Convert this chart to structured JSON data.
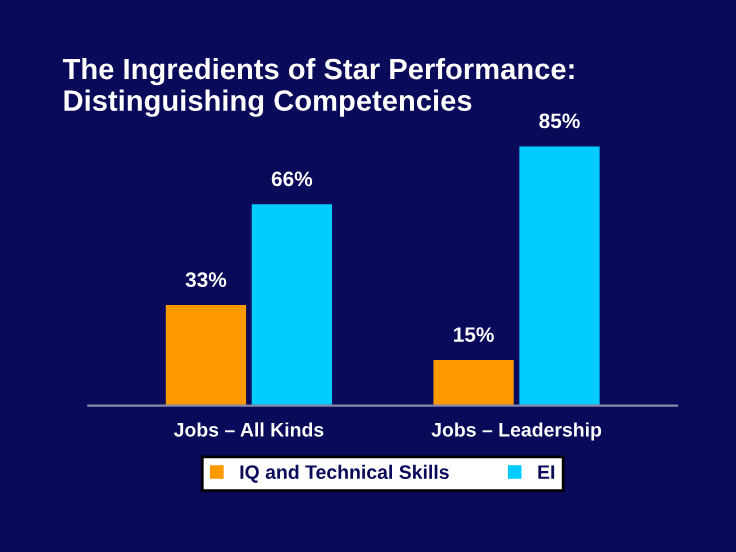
{
  "chart_data": {
    "type": "bar",
    "title": "The Ingredients of Star Performance:\nDistinguishing Competencies",
    "categories": [
      "Jobs – All Kinds",
      "Jobs – Leadership"
    ],
    "series": [
      {
        "name": "IQ and Technical Skills",
        "color": "#ff9900",
        "values": [
          33,
          15
        ],
        "value_labels": [
          "33%",
          "15%"
        ]
      },
      {
        "name": "EI",
        "color": "#00ccff",
        "values": [
          66,
          85
        ],
        "value_labels": [
          "66%",
          "85%"
        ]
      }
    ],
    "legend": "bottom",
    "grid": false
  }
}
